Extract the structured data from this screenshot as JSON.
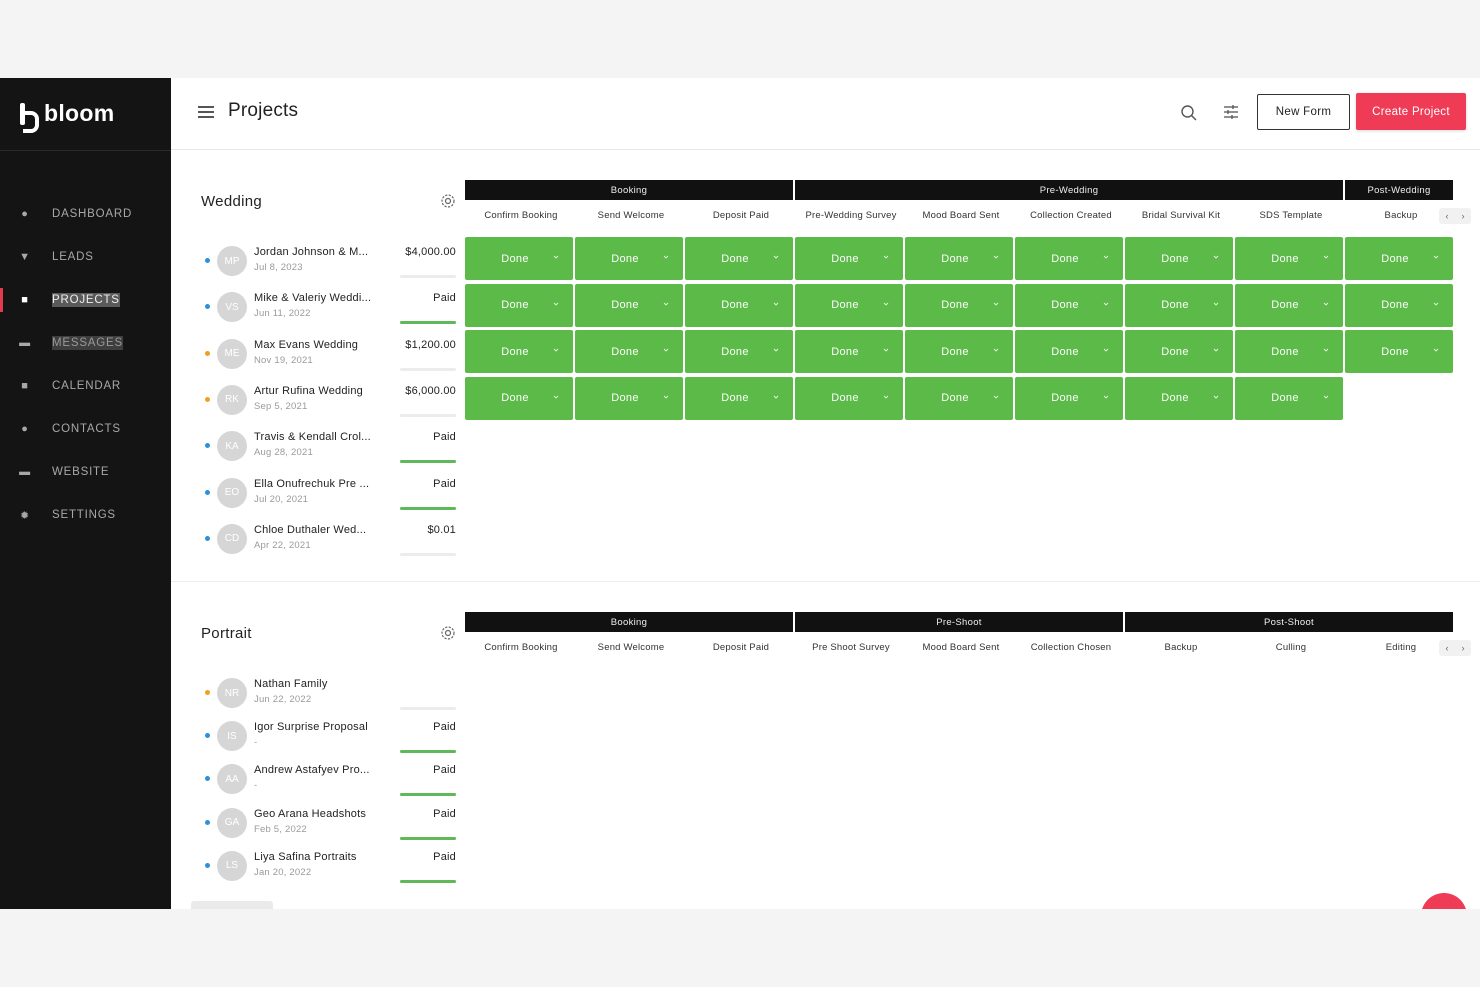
{
  "app": {
    "brand": "bloom"
  },
  "sidebar": {
    "items": [
      {
        "label": "DASHBOARD",
        "icon": "dashboard-icon",
        "active": false
      },
      {
        "label": "LEADS",
        "icon": "funnel-icon",
        "active": false
      },
      {
        "label": "PROJECTS",
        "icon": "briefcase-icon",
        "active": true
      },
      {
        "label": "MESSAGES",
        "icon": "chat-icon",
        "active": false
      },
      {
        "label": "CALENDAR",
        "icon": "calendar-icon",
        "active": false
      },
      {
        "label": "CONTACTS",
        "icon": "person-icon",
        "active": false
      },
      {
        "label": "WEBSITE",
        "icon": "browser-icon",
        "active": false
      },
      {
        "label": "SETTINGS",
        "icon": "gear-icon",
        "active": false
      }
    ]
  },
  "header": {
    "title": "Projects",
    "new_form_label": "New Form",
    "create_project_label": "Create Project"
  },
  "colors": {
    "accent": "#ef3b55",
    "done_green": "#5cba49",
    "progress_green": "#5fb85a",
    "dot_blue": "#2f8fd8",
    "dot_orange": "#f0a020"
  },
  "sections": [
    {
      "title": "Wedding",
      "groups": [
        {
          "label": "Booking",
          "span": 3
        },
        {
          "label": "Pre-Wedding",
          "span": 5
        },
        {
          "label": "Post-Wedding",
          "span": 1
        }
      ],
      "columns": [
        "Confirm Booking",
        "Send Welcome",
        "Deposit Paid",
        "Pre-Wedding Survey",
        "Mood Board Sent",
        "Collection Created",
        "Bridal Survival Kit",
        "SDS Template",
        "Backup"
      ],
      "projects": [
        {
          "initials": "MP",
          "name": "Jordan Johnson & M...",
          "date": "Jul 8, 2023",
          "amount": "$4,000.00",
          "progress": 0,
          "status_dot": "blue",
          "steps": [
            "Done",
            "Done",
            "Done",
            "Done",
            "Done",
            "Done",
            "Done",
            "Done",
            "Done"
          ]
        },
        {
          "initials": "VS",
          "name": "Mike & Valeriy Weddi...",
          "date": "Jun 11, 2022",
          "amount": "Paid",
          "progress": 1,
          "status_dot": "blue",
          "steps": [
            "Done",
            "Done",
            "Done",
            "Done",
            "Done",
            "Done",
            "Done",
            "Done",
            "Done"
          ]
        },
        {
          "initials": "ME",
          "name": "Max Evans Wedding",
          "date": "Nov 19, 2021",
          "amount": "$1,200.00",
          "progress": 0,
          "status_dot": "orange",
          "steps": [
            "Done",
            "Done",
            "Done",
            "Done",
            "Done",
            "Done",
            "Done",
            "Done",
            "Done"
          ]
        },
        {
          "initials": "RK",
          "name": "Artur Rufina Wedding",
          "date": "Sep 5, 2021",
          "amount": "$6,000.00",
          "progress": 0,
          "status_dot": "orange",
          "steps": [
            "Done",
            "Done",
            "Done",
            "Done",
            "Done",
            "Done",
            "Done",
            "Done"
          ]
        },
        {
          "initials": "KA",
          "name": "Travis & Kendall Crol...",
          "date": "Aug 28, 2021",
          "amount": "Paid",
          "progress": 1,
          "status_dot": "blue",
          "steps": []
        },
        {
          "initials": "EO",
          "name": "Ella Onufrechuk Pre ...",
          "date": "Jul 20, 2021",
          "amount": "Paid",
          "progress": 1,
          "status_dot": "blue",
          "steps": []
        },
        {
          "initials": "CD",
          "name": "Chloe Duthaler Wed...",
          "date": "Apr 22, 2021",
          "amount": "$0.01",
          "progress": 0,
          "status_dot": "blue",
          "steps": []
        }
      ]
    },
    {
      "title": "Portrait",
      "groups": [
        {
          "label": "Booking",
          "span": 3
        },
        {
          "label": "Pre-Shoot",
          "span": 3
        },
        {
          "label": "Post-Shoot",
          "span": 3
        }
      ],
      "columns": [
        "Confirm Booking",
        "Send Welcome",
        "Deposit Paid",
        "Pre Shoot Survey",
        "Mood Board Sent",
        "Collection Chosen",
        "Backup",
        "Culling",
        "Editing"
      ],
      "projects": [
        {
          "initials": "NR",
          "name": "Nathan Family",
          "date": "Jun 22, 2022",
          "amount": "",
          "progress": 0,
          "status_dot": "orange",
          "steps": []
        },
        {
          "initials": "IS",
          "name": "Igor Surprise Proposal",
          "date": "-",
          "amount": "Paid",
          "progress": 1,
          "status_dot": "blue",
          "steps": []
        },
        {
          "initials": "AA",
          "name": "Andrew Astafyev Pro...",
          "date": "-",
          "amount": "Paid",
          "progress": 1,
          "status_dot": "blue",
          "steps": []
        },
        {
          "initials": "GA",
          "name": "Geo Arana Headshots",
          "date": "Feb 5, 2022",
          "amount": "Paid",
          "progress": 1,
          "status_dot": "blue",
          "steps": []
        },
        {
          "initials": "LS",
          "name": "Liya Safina Portraits",
          "date": "Jan 20, 2022",
          "amount": "Paid",
          "progress": 1,
          "status_dot": "blue",
          "steps": []
        }
      ]
    }
  ]
}
